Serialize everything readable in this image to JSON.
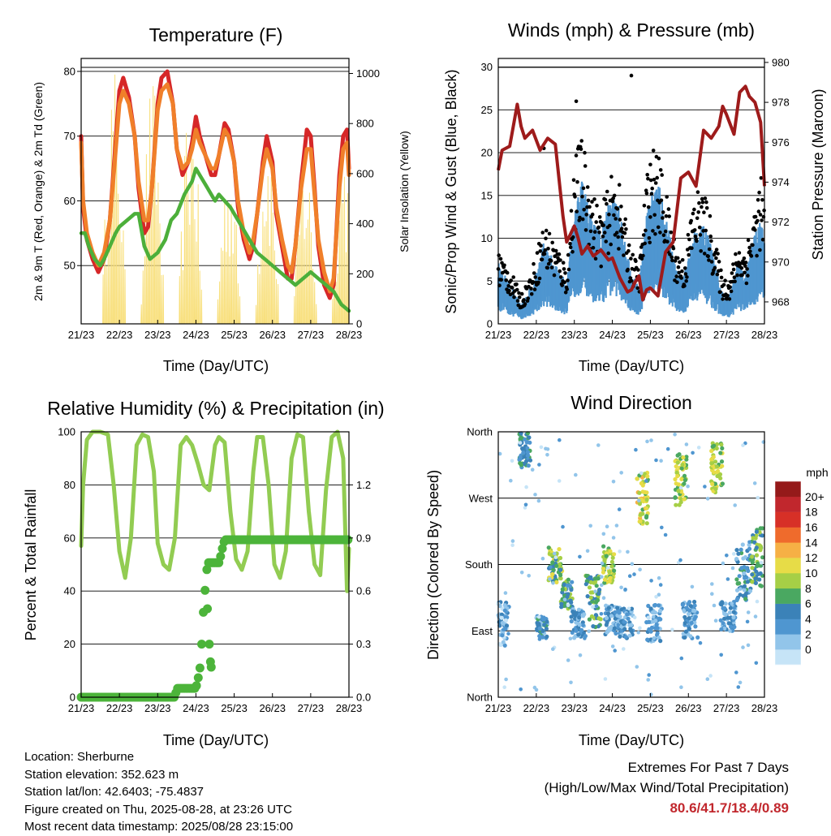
{
  "panels": {
    "temperature": {
      "title": "Temperature (F)",
      "ylabel_left": "2m & 9m T (Red, Orange) & 2m Td (Green)",
      "ylabel_right": "Solar Insolation (Yellow)",
      "xlabel": "Time (Day/UTC)"
    },
    "winds": {
      "title": "Winds (mph) & Pressure (mb)",
      "ylabel_left": "Sonic/Prop Wind & Gust (Blue, Black)",
      "ylabel_right": "Station Pressure (Maroon)",
      "xlabel": "Time (Day/UTC)"
    },
    "humidity": {
      "title": "Relative Humidity (%) & Precipitation (in)",
      "ylabel_left": "Percent & Total Rainfall",
      "xlabel": "Time (Day/UTC)"
    },
    "direction": {
      "title": "Wind Direction",
      "ylabel_left": "Direction (Colored By Speed)",
      "xlabel": "Time (Day/UTC)",
      "colorbar_title": "mph"
    }
  },
  "info": {
    "location": "Location: Sherburne",
    "elevation": "Station elevation: 352.623 m",
    "latlon": "Station lat/lon: 42.6403; -75.4837",
    "created": "Figure created on Thu, 2025-08-28, at 23:26 UTC",
    "recent": "Most recent data timestamp: 2025/08/28 23:15:00"
  },
  "extremes": {
    "line1": "Extremes For Past 7 Days",
    "line2": "(High/Low/Max Wind/Total Precipitation)",
    "values": "80.6/41.7/18.4/0.89"
  },
  "colors": {
    "temp2m": "#d62728",
    "temp9m": "#f07f2a",
    "dewpoint": "#4caf3a",
    "solar": "#f8df7a",
    "wind": "#4f96d0",
    "gust": "#000000",
    "pressure": "#9e1b1b",
    "rh": "#92cc52",
    "precip": "#4cb43a"
  },
  "chart_data": [
    {
      "id": "temperature",
      "type": "line",
      "x_ticks": [
        "21/23",
        "22/23",
        "23/23",
        "24/23",
        "25/23",
        "26/23",
        "27/23",
        "28/23"
      ],
      "xlim": [
        0,
        7
      ],
      "ylim": [
        41,
        82
      ],
      "yticks": [
        50,
        60,
        70,
        80
      ],
      "ylim_right": [
        0,
        1060
      ],
      "yticks_right": [
        0,
        200,
        400,
        600,
        800,
        1000
      ],
      "grid": "horizontal at y ticks",
      "series": [
        {
          "key": "temp2m",
          "x": [
            0,
            0.05,
            0.15,
            0.3,
            0.45,
            0.6,
            0.75,
            0.85,
            1.0,
            1.1,
            1.25,
            1.4,
            1.5,
            1.65,
            1.75,
            1.85,
            2.0,
            2.1,
            2.25,
            2.4,
            2.5,
            2.65,
            2.8,
            2.9,
            3.0,
            3.1,
            3.25,
            3.4,
            3.5,
            3.6,
            3.75,
            3.85,
            4.0,
            4.1,
            4.25,
            4.4,
            4.5,
            4.6,
            4.75,
            4.85,
            5.0,
            5.1,
            5.25,
            5.4,
            5.5,
            5.6,
            5.75,
            5.9,
            6.0,
            6.1,
            6.2,
            6.35,
            6.5,
            6.6,
            6.75,
            6.85,
            6.95,
            7.0
          ],
          "y": [
            70,
            59,
            54,
            51,
            49,
            51,
            57,
            65,
            77,
            79,
            76,
            70,
            62,
            55,
            56,
            62,
            75,
            79,
            80,
            75,
            68,
            64,
            66,
            69,
            73,
            70,
            67,
            64,
            64,
            67,
            72,
            71,
            66,
            59,
            54,
            51,
            53,
            58,
            66,
            70,
            66,
            58,
            53,
            48,
            48,
            53,
            63,
            71,
            70,
            62,
            53,
            47,
            45,
            47,
            64,
            70,
            71,
            65
          ]
        },
        {
          "key": "temp9m",
          "x": [
            0,
            0.05,
            0.15,
            0.3,
            0.45,
            0.6,
            0.75,
            0.85,
            1.0,
            1.1,
            1.25,
            1.4,
            1.5,
            1.65,
            1.75,
            1.85,
            2.0,
            2.1,
            2.25,
            2.4,
            2.5,
            2.65,
            2.8,
            2.9,
            3.0,
            3.1,
            3.25,
            3.4,
            3.5,
            3.6,
            3.75,
            3.85,
            4.0,
            4.1,
            4.25,
            4.4,
            4.5,
            4.6,
            4.75,
            4.85,
            5.0,
            5.1,
            5.25,
            5.4,
            5.5,
            5.6,
            5.75,
            5.9,
            6.0,
            6.1,
            6.2,
            6.35,
            6.5,
            6.6,
            6.75,
            6.85,
            6.95,
            7.0
          ],
          "y": [
            69,
            60,
            55,
            52,
            50,
            52,
            57,
            64,
            75,
            77,
            75,
            70,
            63,
            57,
            57,
            62,
            74,
            77,
            78,
            75,
            68,
            65,
            66,
            68,
            71,
            69,
            67,
            65,
            65,
            67,
            71,
            70,
            66,
            60,
            55,
            52,
            54,
            58,
            65,
            68,
            65,
            59,
            54,
            50,
            49,
            53,
            62,
            68,
            68,
            61,
            54,
            49,
            46,
            48,
            62,
            68,
            69,
            64
          ]
        },
        {
          "key": "dewpoint",
          "x": [
            0,
            0.1,
            0.2,
            0.35,
            0.5,
            0.6,
            0.75,
            0.9,
            1.0,
            1.2,
            1.4,
            1.5,
            1.65,
            1.8,
            2.0,
            2.2,
            2.35,
            2.5,
            2.7,
            2.9,
            3.0,
            3.1,
            3.3,
            3.5,
            3.6,
            3.75,
            3.9,
            4.0,
            4.2,
            4.4,
            4.6,
            4.8,
            5.0,
            5.2,
            5.4,
            5.6,
            5.8,
            6.0,
            6.2,
            6.4,
            6.6,
            6.8,
            7.0
          ],
          "y": [
            55,
            55,
            53,
            51,
            50,
            51,
            53,
            55,
            56,
            57,
            58,
            58,
            53,
            51,
            52,
            54,
            57,
            58,
            61,
            63,
            65,
            64,
            62,
            60,
            61,
            60,
            59,
            58,
            56,
            54,
            52,
            51,
            50,
            49,
            48,
            47,
            48,
            49,
            48,
            47,
            46,
            44,
            43
          ]
        }
      ],
      "solar": {
        "peak_days": [
          0.85,
          1.85,
          2.85,
          3.85,
          4.85,
          5.85,
          6.85
        ],
        "peak_wm2": [
          1060,
          1000,
          950,
          700,
          820,
          700,
          750
        ]
      }
    },
    {
      "id": "winds",
      "type": "scatter",
      "x_ticks": [
        "21/23",
        "22/23",
        "23/23",
        "24/23",
        "25/23",
        "26/23",
        "27/23",
        "28/23"
      ],
      "xlim": [
        0,
        7
      ],
      "ylim": [
        0,
        31
      ],
      "yticks": [
        0,
        5,
        10,
        15,
        20,
        25,
        30
      ],
      "ylim_right": [
        966.9,
        980.2
      ],
      "yticks_right": [
        968,
        970,
        972,
        974,
        976,
        978,
        980
      ],
      "grid": "horizontal at y ticks",
      "pressure": {
        "x": [
          0,
          0.1,
          0.3,
          0.5,
          0.6,
          0.7,
          0.9,
          1.1,
          1.3,
          1.5,
          1.7,
          1.8,
          2.0,
          2.1,
          2.2,
          2.35,
          2.5,
          2.7,
          2.9,
          3.0,
          3.2,
          3.4,
          3.5,
          3.6,
          3.7,
          3.8,
          3.9,
          4.0,
          4.2,
          4.4,
          4.6,
          4.8,
          5.0,
          5.2,
          5.4,
          5.6,
          5.8,
          5.9,
          6.0,
          6.2,
          6.35,
          6.5,
          6.6,
          6.75,
          6.9,
          7.0
        ],
        "y": [
          974.6,
          975.6,
          975.8,
          977.9,
          976.8,
          976.2,
          976.6,
          975.6,
          976.2,
          975.9,
          972.3,
          971.0,
          971.8,
          971.2,
          970.4,
          970.8,
          970.3,
          970.6,
          970.1,
          970.2,
          969.2,
          968.5,
          968.6,
          969.0,
          969.3,
          968.1,
          968.6,
          968.7,
          968.3,
          970.5,
          971.0,
          974.2,
          974.5,
          973.8,
          976.6,
          976.2,
          976.8,
          977.8,
          977.4,
          976.4,
          978.5,
          978.8,
          978.3,
          978.0,
          977.0,
          973.8
        ]
      },
      "wind_envelope": {
        "x": [
          0,
          0.3,
          0.6,
          0.9,
          1.2,
          1.5,
          1.8,
          2.0,
          2.2,
          2.5,
          2.7,
          2.9,
          3.1,
          3.3,
          3.5,
          3.7,
          3.9,
          4.1,
          4.3,
          4.5,
          4.7,
          4.9,
          5.1,
          5.3,
          5.5,
          5.7,
          5.9,
          6.1,
          6.3,
          6.5,
          6.7,
          6.9,
          7.0
        ],
        "y": [
          6,
          4,
          2,
          4,
          8,
          6,
          4,
          12,
          14,
          10,
          9,
          12,
          13,
          9,
          5,
          4,
          11,
          14,
          13,
          9,
          5,
          5,
          9,
          10,
          9,
          6,
          3,
          3,
          6,
          5,
          8,
          11,
          9
        ]
      },
      "gust_envelope": {
        "x": [
          0,
          0.3,
          0.6,
          0.9,
          1.2,
          1.5,
          1.8,
          2.0,
          2.2,
          2.5,
          2.7,
          2.9,
          3.1,
          3.3,
          3.5,
          3.7,
          3.9,
          4.1,
          4.3,
          4.5,
          4.7,
          4.9,
          5.1,
          5.3,
          5.5,
          5.7,
          5.9,
          6.1,
          6.3,
          6.5,
          6.7,
          6.9,
          7.0
        ],
        "y": [
          8,
          6,
          3,
          6,
          11,
          9,
          6,
          18,
          20,
          14,
          12,
          15,
          17,
          12,
          8,
          6,
          16,
          19,
          17,
          12,
          8,
          7,
          13,
          15,
          13,
          9,
          5,
          5,
          9,
          8,
          12,
          16,
          13
        ]
      }
    },
    {
      "id": "humidity",
      "type": "line",
      "x_ticks": [
        "21/23",
        "22/23",
        "23/23",
        "24/23",
        "25/23",
        "26/23",
        "27/23",
        "28/23"
      ],
      "xlim": [
        0,
        7
      ],
      "ylim": [
        0,
        100
      ],
      "yticks": [
        0,
        20,
        40,
        60,
        80,
        100
      ],
      "ylim_right": [
        0,
        1.5
      ],
      "yticks_right": [
        "0.0",
        "0.3",
        "0.6",
        "0.9",
        "1.2"
      ],
      "grid": "horizontal at y ticks",
      "series": [
        {
          "key": "rh",
          "x": [
            0,
            0.05,
            0.15,
            0.3,
            0.5,
            0.7,
            0.85,
            1.0,
            1.15,
            1.3,
            1.45,
            1.6,
            1.75,
            1.9,
            2.0,
            2.15,
            2.3,
            2.45,
            2.6,
            2.75,
            2.9,
            3.05,
            3.2,
            3.35,
            3.5,
            3.6,
            3.75,
            3.9,
            4.05,
            4.2,
            4.35,
            4.5,
            4.6,
            4.75,
            4.9,
            5.05,
            5.2,
            5.35,
            5.5,
            5.65,
            5.8,
            5.95,
            6.1,
            6.25,
            6.4,
            6.55,
            6.7,
            6.85,
            6.95,
            7.0
          ],
          "y": [
            57,
            80,
            97,
            100,
            100,
            99,
            80,
            55,
            45,
            60,
            95,
            99,
            98,
            85,
            58,
            50,
            48,
            60,
            95,
            98,
            95,
            88,
            80,
            78,
            95,
            98,
            96,
            70,
            52,
            48,
            55,
            85,
            98,
            98,
            80,
            50,
            45,
            55,
            90,
            99,
            98,
            70,
            50,
            46,
            78,
            98,
            100,
            90,
            40,
            56
          ]
        },
        {
          "key": "precip",
          "x": [
            0,
            0.5,
            1.0,
            1.5,
            2.0,
            2.45,
            2.5,
            2.9,
            3.0,
            3.05,
            3.1,
            3.15,
            3.2,
            3.3,
            3.4,
            3.45,
            3.5,
            3.55,
            3.6,
            3.65,
            3.7,
            3.75,
            3.8,
            3.9,
            4.0,
            4.5,
            5.0,
            5.5,
            6.0,
            6.5,
            7.0
          ],
          "y": [
            0,
            0,
            0,
            0,
            0,
            0,
            0.05,
            0.05,
            0.05,
            0.1,
            0.15,
            0.3,
            0.5,
            0.76,
            0.76,
            0.76,
            0.76,
            0.76,
            0.76,
            0.8,
            0.85,
            0.89,
            0.89,
            0.89,
            0.89,
            0.89,
            0.89,
            0.89,
            0.89,
            0.89,
            0.89
          ]
        }
      ]
    },
    {
      "id": "direction",
      "type": "scatter",
      "x_ticks": [
        "21/23",
        "22/23",
        "23/23",
        "24/23",
        "25/23",
        "26/23",
        "27/23",
        "28/23"
      ],
      "xlim": [
        0,
        7
      ],
      "ylim": [
        0,
        360
      ],
      "yticks": [
        "North",
        "East",
        "South",
        "West",
        "North"
      ],
      "ytick_degrees": [
        0,
        90,
        180,
        270,
        360
      ],
      "grid": "horizontal at y ticks",
      "colorbar": {
        "labels": [
          "0",
          "2",
          "4",
          "6",
          "8",
          "10",
          "12",
          "14",
          "16",
          "18",
          "20+"
        ],
        "colors": [
          "#c6e4f7",
          "#92c5ea",
          "#4f96d0",
          "#3b82b8",
          "#4aa861",
          "#a6cf46",
          "#e7dc47",
          "#f6b045",
          "#ef6b2c",
          "#d73027",
          "#c1272d",
          "#951a1a"
        ]
      },
      "clusters": [
        {
          "day": 0.1,
          "dir": 100,
          "spread_t": 0.18,
          "spread_d": 30,
          "speed": 3
        },
        {
          "day": 0.7,
          "dir": 335,
          "spread_t": 0.15,
          "spread_d": 25,
          "speed": 6
        },
        {
          "day": 1.15,
          "dir": 95,
          "spread_t": 0.15,
          "spread_d": 15,
          "speed": 5
        },
        {
          "day": 1.5,
          "dir": 180,
          "spread_t": 0.18,
          "spread_d": 25,
          "speed": 9
        },
        {
          "day": 1.8,
          "dir": 140,
          "spread_t": 0.15,
          "spread_d": 20,
          "speed": 7
        },
        {
          "day": 2.1,
          "dir": 100,
          "spread_t": 0.2,
          "spread_d": 20,
          "speed": 4
        },
        {
          "day": 2.5,
          "dir": 130,
          "spread_t": 0.2,
          "spread_d": 35,
          "speed": 8
        },
        {
          "day": 2.9,
          "dir": 180,
          "spread_t": 0.15,
          "spread_d": 25,
          "speed": 10
        },
        {
          "day": 3.0,
          "dir": 105,
          "spread_t": 0.2,
          "spread_d": 20,
          "speed": 4
        },
        {
          "day": 3.35,
          "dir": 100,
          "spread_t": 0.2,
          "spread_d": 20,
          "speed": 4
        },
        {
          "day": 3.8,
          "dir": 270,
          "spread_t": 0.15,
          "spread_d": 35,
          "speed": 11
        },
        {
          "day": 4.1,
          "dir": 100,
          "spread_t": 0.2,
          "spread_d": 25,
          "speed": 3
        },
        {
          "day": 4.8,
          "dir": 295,
          "spread_t": 0.15,
          "spread_d": 35,
          "speed": 10
        },
        {
          "day": 5.05,
          "dir": 105,
          "spread_t": 0.2,
          "spread_d": 25,
          "speed": 4
        },
        {
          "day": 5.75,
          "dir": 310,
          "spread_t": 0.15,
          "spread_d": 35,
          "speed": 10
        },
        {
          "day": 6.05,
          "dir": 110,
          "spread_t": 0.2,
          "spread_d": 20,
          "speed": 4
        },
        {
          "day": 6.45,
          "dir": 170,
          "spread_t": 0.2,
          "spread_d": 40,
          "speed": 5
        },
        {
          "day": 6.8,
          "dir": 190,
          "spread_t": 0.15,
          "spread_d": 40,
          "speed": 8
        }
      ]
    }
  ]
}
